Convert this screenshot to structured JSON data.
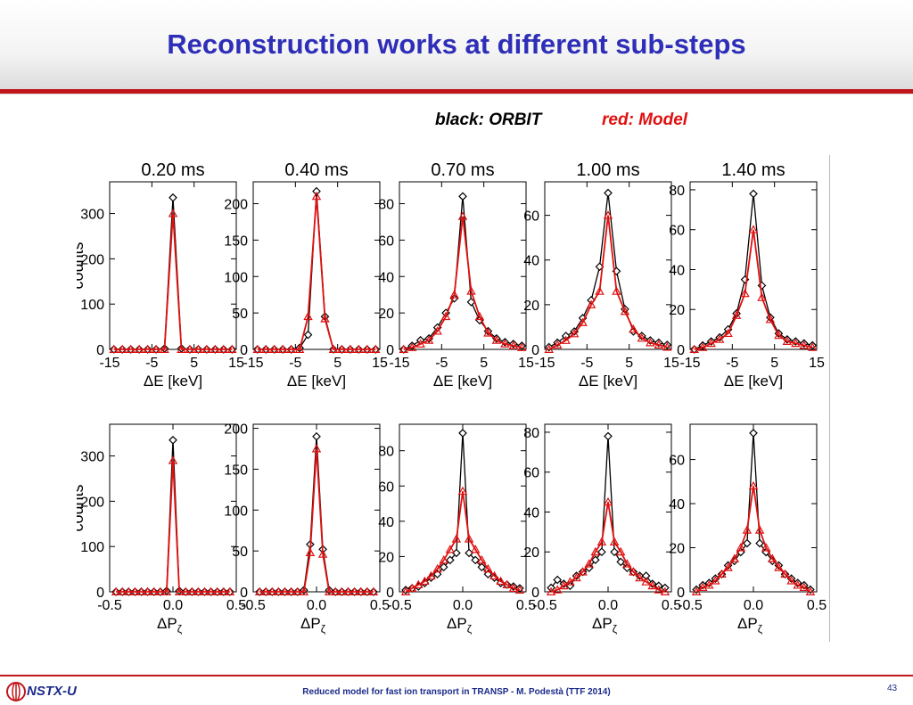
{
  "slide": {
    "title": "Reconstruction works at different sub-steps",
    "legend_black": "black: ORBIT",
    "legend_red": "red: Model",
    "footer": "Reduced model for fast ion transport in TRANSP - M. Podestà (TTF 2014)",
    "page_number": "43",
    "logo_text": "NSTX-U",
    "colors": {
      "title": "#2e2eb8",
      "rule": "#c0161c",
      "orbit": "#000000",
      "model": "#e01010"
    }
  },
  "chart_data": [
    {
      "type": "line",
      "row": "dE",
      "title": "0.20 ms",
      "xlabel": "ΔE [keV]",
      "ylabel": "counts",
      "xlim": [
        -15,
        15
      ],
      "xticks": [
        "-15",
        "-5",
        "5",
        "15"
      ],
      "ylim": [
        0,
        370
      ],
      "yticks": [
        0,
        100,
        200,
        300
      ],
      "series": [
        {
          "name": "ORBIT",
          "marker": "diamond",
          "x": [
            -14,
            -12,
            -10,
            -8,
            -6,
            -4,
            -2,
            0,
            2,
            4,
            6,
            8,
            10,
            12,
            14
          ],
          "values": [
            0,
            0,
            0,
            0,
            0,
            0,
            2,
            335,
            2,
            0,
            0,
            0,
            0,
            0,
            0
          ]
        },
        {
          "name": "Model",
          "marker": "triangle",
          "x": [
            -14,
            -12,
            -10,
            -8,
            -6,
            -4,
            -2,
            0,
            2,
            4,
            6,
            8,
            10,
            12,
            14
          ],
          "values": [
            0,
            0,
            0,
            0,
            0,
            0,
            0,
            300,
            0,
            0,
            0,
            0,
            0,
            0,
            0
          ]
        }
      ]
    },
    {
      "type": "line",
      "row": "dE",
      "title": "0.40 ms",
      "xlabel": "ΔE [keV]",
      "ylabel": "",
      "xlim": [
        -15,
        15
      ],
      "xticks": [
        "-15",
        "-5",
        "5",
        "15"
      ],
      "ylim": [
        0,
        230
      ],
      "yticks": [
        0,
        50,
        100,
        150,
        200
      ],
      "series": [
        {
          "name": "ORBIT",
          "marker": "diamond",
          "x": [
            -14,
            -12,
            -10,
            -8,
            -6,
            -4,
            -2,
            0,
            2,
            4,
            6,
            8,
            10,
            12,
            14
          ],
          "values": [
            0,
            0,
            0,
            0,
            0,
            2,
            20,
            217,
            45,
            0,
            0,
            0,
            0,
            0,
            0
          ]
        },
        {
          "name": "Model",
          "marker": "triangle",
          "x": [
            -14,
            -12,
            -10,
            -8,
            -6,
            -4,
            -2,
            0,
            2,
            4,
            6,
            8,
            10,
            12,
            14
          ],
          "values": [
            0,
            0,
            0,
            0,
            0,
            0,
            45,
            210,
            42,
            0,
            0,
            0,
            0,
            0,
            0
          ]
        }
      ]
    },
    {
      "type": "line",
      "row": "dE",
      "title": "0.70 ms",
      "xlabel": "ΔE [keV]",
      "ylabel": "",
      "xlim": [
        -15,
        15
      ],
      "xticks": [
        "-15",
        "-5",
        "5",
        "15"
      ],
      "ylim": [
        0,
        92
      ],
      "yticks": [
        0,
        20,
        40,
        60,
        80
      ],
      "series": [
        {
          "name": "ORBIT",
          "marker": "diamond",
          "x": [
            -14,
            -12,
            -10,
            -8,
            -6,
            -4,
            -2,
            0,
            2,
            4,
            6,
            8,
            10,
            12,
            14
          ],
          "values": [
            0,
            2,
            5,
            6,
            12,
            20,
            28,
            84,
            26,
            16,
            10,
            6,
            4,
            3,
            2
          ]
        },
        {
          "name": "Model",
          "marker": "triangle",
          "x": [
            -14,
            -12,
            -10,
            -8,
            -6,
            -4,
            -2,
            0,
            2,
            4,
            6,
            8,
            10,
            12,
            14
          ],
          "values": [
            0,
            1,
            3,
            5,
            10,
            18,
            30,
            73,
            32,
            18,
            9,
            5,
            3,
            2,
            1
          ]
        }
      ]
    },
    {
      "type": "line",
      "row": "dE",
      "title": "1.00 ms",
      "xlabel": "ΔE [keV]",
      "ylabel": "",
      "xlim": [
        -15,
        15
      ],
      "xticks": [
        "-15",
        "-5",
        "5",
        "15"
      ],
      "ylim": [
        0,
        75
      ],
      "yticks": [
        0,
        20,
        40,
        60
      ],
      "series": [
        {
          "name": "ORBIT",
          "marker": "diamond",
          "x": [
            -14,
            -12,
            -10,
            -8,
            -6,
            -4,
            -2,
            0,
            2,
            4,
            6,
            8,
            10,
            12,
            14
          ],
          "values": [
            1,
            3,
            6,
            8,
            14,
            22,
            37,
            70,
            35,
            18,
            8,
            6,
            4,
            3,
            2
          ]
        },
        {
          "name": "Model",
          "marker": "triangle",
          "x": [
            -14,
            -12,
            -10,
            -8,
            -6,
            -4,
            -2,
            0,
            2,
            4,
            6,
            8,
            10,
            12,
            14
          ],
          "values": [
            0,
            2,
            4,
            7,
            12,
            20,
            26,
            60,
            26,
            17,
            9,
            5,
            3,
            2,
            1
          ]
        }
      ]
    },
    {
      "type": "line",
      "row": "dE",
      "title": "1.40 ms",
      "xlabel": "ΔE [keV]",
      "ylabel": "",
      "xlim": [
        -15,
        15
      ],
      "xticks": [
        "-15",
        "-5",
        "5",
        "15"
      ],
      "ylim": [
        0,
        84
      ],
      "yticks": [
        0,
        20,
        40,
        60,
        80
      ],
      "series": [
        {
          "name": "ORBIT",
          "marker": "diamond",
          "x": [
            -14,
            -12,
            -10,
            -8,
            -6,
            -4,
            -2,
            0,
            2,
            4,
            6,
            8,
            10,
            12,
            14
          ],
          "values": [
            0,
            2,
            4,
            6,
            10,
            18,
            35,
            78,
            32,
            16,
            8,
            5,
            4,
            3,
            2
          ]
        },
        {
          "name": "Model",
          "marker": "triangle",
          "x": [
            -14,
            -12,
            -10,
            -8,
            -6,
            -4,
            -2,
            0,
            2,
            4,
            6,
            8,
            10,
            12,
            14
          ],
          "values": [
            0,
            1,
            3,
            5,
            8,
            17,
            28,
            60,
            26,
            15,
            7,
            4,
            3,
            2,
            1
          ]
        }
      ]
    },
    {
      "type": "line",
      "row": "dP",
      "title": "",
      "xlabel": "ΔP",
      "xlabel_sub": "ζ",
      "ylabel": "counts",
      "xlim": [
        -0.5,
        0.5
      ],
      "xticks": [
        "-0.5",
        "0.0",
        "0.5"
      ],
      "ylim": [
        0,
        370
      ],
      "yticks": [
        0,
        100,
        200,
        300
      ],
      "series": [
        {
          "name": "ORBIT",
          "marker": "diamond",
          "x": [
            -0.45,
            -0.4,
            -0.35,
            -0.3,
            -0.25,
            -0.2,
            -0.15,
            -0.1,
            -0.05,
            0,
            0.05,
            0.1,
            0.15,
            0.2,
            0.25,
            0.3,
            0.35,
            0.4,
            0.45
          ],
          "values": [
            0,
            0,
            0,
            0,
            0,
            0,
            0,
            0,
            2,
            335,
            2,
            0,
            0,
            0,
            0,
            0,
            0,
            0,
            0
          ]
        },
        {
          "name": "Model",
          "marker": "triangle",
          "x": [
            -0.45,
            -0.4,
            -0.35,
            -0.3,
            -0.25,
            -0.2,
            -0.15,
            -0.1,
            -0.05,
            0,
            0.05,
            0.1,
            0.15,
            0.2,
            0.25,
            0.3,
            0.35,
            0.4,
            0.45
          ],
          "values": [
            0,
            0,
            0,
            0,
            0,
            0,
            0,
            0,
            0,
            290,
            0,
            0,
            0,
            0,
            0,
            0,
            0,
            0,
            0
          ]
        }
      ]
    },
    {
      "type": "line",
      "row": "dP",
      "title": "",
      "xlabel": "ΔP",
      "xlabel_sub": "ζ",
      "ylabel": "",
      "xlim": [
        -0.5,
        0.5
      ],
      "xticks": [
        "-0.5",
        "0.0",
        "0.5"
      ],
      "ylim": [
        0,
        205
      ],
      "yticks": [
        0,
        50,
        100,
        150,
        200
      ],
      "series": [
        {
          "name": "ORBIT",
          "marker": "diamond",
          "x": [
            -0.45,
            -0.4,
            -0.35,
            -0.3,
            -0.25,
            -0.2,
            -0.15,
            -0.1,
            -0.05,
            0,
            0.05,
            0.1,
            0.15,
            0.2,
            0.25,
            0.3,
            0.35,
            0.4,
            0.45
          ],
          "values": [
            0,
            0,
            0,
            0,
            0,
            0,
            0,
            2,
            58,
            190,
            52,
            2,
            0,
            0,
            0,
            0,
            0,
            0,
            0
          ]
        },
        {
          "name": "Model",
          "marker": "triangle",
          "x": [
            -0.45,
            -0.4,
            -0.35,
            -0.3,
            -0.25,
            -0.2,
            -0.15,
            -0.1,
            -0.05,
            0,
            0.05,
            0.1,
            0.15,
            0.2,
            0.25,
            0.3,
            0.35,
            0.4,
            0.45
          ],
          "values": [
            0,
            0,
            0,
            0,
            0,
            0,
            0,
            0,
            48,
            175,
            46,
            0,
            0,
            0,
            0,
            0,
            0,
            0,
            0
          ]
        }
      ]
    },
    {
      "type": "line",
      "row": "dP",
      "title": "",
      "xlabel": "ΔP",
      "xlabel_sub": "ζ",
      "ylabel": "",
      "xlim": [
        -0.5,
        0.5
      ],
      "xticks": [
        "-0.5",
        "0.0",
        "0.5"
      ],
      "ylim": [
        0,
        95
      ],
      "yticks": [
        0,
        20,
        40,
        60,
        80
      ],
      "series": [
        {
          "name": "ORBIT",
          "marker": "diamond",
          "x": [
            -0.45,
            -0.4,
            -0.35,
            -0.3,
            -0.25,
            -0.2,
            -0.15,
            -0.1,
            -0.05,
            0,
            0.05,
            0.1,
            0.15,
            0.2,
            0.25,
            0.3,
            0.35,
            0.4,
            0.45
          ],
          "values": [
            1,
            2,
            3,
            5,
            8,
            10,
            14,
            18,
            22,
            90,
            22,
            18,
            14,
            10,
            8,
            5,
            4,
            3,
            2
          ]
        },
        {
          "name": "Model",
          "marker": "triangle",
          "x": [
            -0.45,
            -0.4,
            -0.35,
            -0.3,
            -0.25,
            -0.2,
            -0.15,
            -0.1,
            -0.05,
            0,
            0.05,
            0.1,
            0.15,
            0.2,
            0.25,
            0.3,
            0.35,
            0.4,
            0.45
          ],
          "values": [
            0,
            2,
            4,
            6,
            9,
            13,
            18,
            24,
            30,
            57,
            30,
            24,
            18,
            13,
            9,
            6,
            4,
            2,
            1
          ]
        }
      ]
    },
    {
      "type": "line",
      "row": "dP",
      "title": "",
      "xlabel": "ΔP",
      "xlabel_sub": "ζ",
      "ylabel": "",
      "xlim": [
        -0.5,
        0.5
      ],
      "xticks": [
        "-0.5",
        "0.0",
        "0.5"
      ],
      "ylim": [
        0,
        84
      ],
      "yticks": [
        0,
        20,
        40,
        60,
        80
      ],
      "series": [
        {
          "name": "ORBIT",
          "marker": "diamond",
          "x": [
            -0.45,
            -0.4,
            -0.35,
            -0.3,
            -0.25,
            -0.2,
            -0.15,
            -0.1,
            -0.05,
            0,
            0.05,
            0.1,
            0.15,
            0.2,
            0.25,
            0.3,
            0.35,
            0.4,
            0.45
          ],
          "values": [
            2,
            6,
            4,
            3,
            8,
            10,
            12,
            16,
            20,
            78,
            20,
            15,
            12,
            10,
            8,
            8,
            4,
            3,
            2
          ]
        },
        {
          "name": "Model",
          "marker": "triangle",
          "x": [
            -0.45,
            -0.4,
            -0.35,
            -0.3,
            -0.25,
            -0.2,
            -0.15,
            -0.1,
            -0.05,
            0,
            0.05,
            0.1,
            0.15,
            0.2,
            0.25,
            0.3,
            0.35,
            0.4,
            0.45
          ],
          "values": [
            0,
            1,
            3,
            5,
            7,
            10,
            14,
            20,
            25,
            45,
            25,
            20,
            14,
            10,
            7,
            5,
            3,
            1,
            0
          ]
        }
      ]
    },
    {
      "type": "line",
      "row": "dP",
      "title": "",
      "xlabel": "ΔP",
      "xlabel_sub": "ζ",
      "ylabel": "",
      "xlim": [
        -0.5,
        0.5
      ],
      "xticks": [
        "-0.5",
        "0.0",
        "0.5"
      ],
      "ylim": [
        0,
        76
      ],
      "yticks": [
        0,
        20,
        40,
        60
      ],
      "series": [
        {
          "name": "ORBIT",
          "marker": "diamond",
          "x": [
            -0.45,
            -0.4,
            -0.35,
            -0.3,
            -0.25,
            -0.2,
            -0.15,
            -0.1,
            -0.05,
            0,
            0.05,
            0.1,
            0.15,
            0.2,
            0.25,
            0.3,
            0.35,
            0.4,
            0.45
          ],
          "values": [
            1,
            3,
            4,
            6,
            8,
            12,
            14,
            18,
            22,
            72,
            22,
            18,
            14,
            12,
            8,
            6,
            4,
            3,
            1
          ]
        },
        {
          "name": "Model",
          "marker": "triangle",
          "x": [
            -0.45,
            -0.4,
            -0.35,
            -0.3,
            -0.25,
            -0.2,
            -0.15,
            -0.1,
            -0.05,
            0,
            0.05,
            0.1,
            0.15,
            0.2,
            0.25,
            0.3,
            0.35,
            0.4,
            0.45
          ],
          "values": [
            0,
            2,
            3,
            5,
            8,
            11,
            15,
            20,
            28,
            48,
            28,
            20,
            15,
            11,
            8,
            5,
            3,
            2,
            0
          ]
        }
      ]
    }
  ]
}
